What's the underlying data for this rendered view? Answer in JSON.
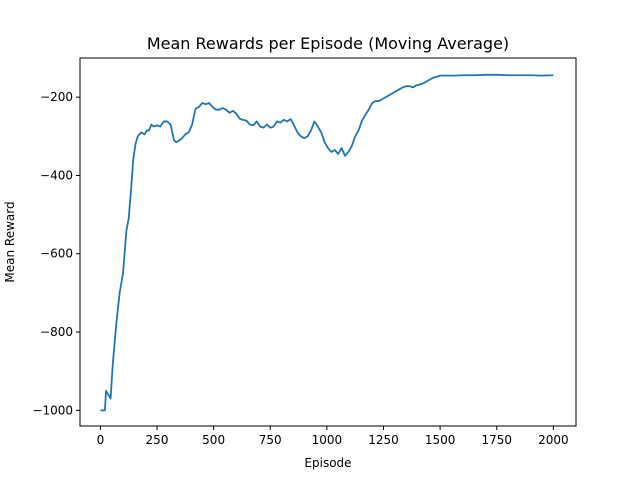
{
  "chart_data": {
    "type": "line",
    "title": "Mean Rewards per Episode (Moving Average)",
    "xlabel": "Episode",
    "ylabel": "Mean Reward",
    "xlim": [
      -90,
      2100
    ],
    "ylim": [
      -1040,
      -100
    ],
    "x_ticks": [
      0,
      250,
      500,
      750,
      1000,
      1250,
      1500,
      1750,
      2000
    ],
    "y_ticks": [
      -1000,
      -800,
      -600,
      -400,
      -200
    ],
    "x_tick_labels": [
      "0",
      "250",
      "500",
      "750",
      "1000",
      "1250",
      "1500",
      "1750",
      "2000"
    ],
    "y_tick_labels": [
      "−1000",
      "−800",
      "−600",
      "−400",
      "−200"
    ],
    "grid": false,
    "line_color": "#1f77b4",
    "series": [
      {
        "x": [
          0,
          20,
          25,
          35,
          45,
          55,
          70,
          85,
          100,
          115,
          125,
          135,
          145,
          155,
          165,
          180,
          195,
          205,
          215,
          225,
          235,
          250,
          265,
          280,
          295,
          310,
          325,
          335,
          345,
          360,
          375,
          390,
          405,
          420,
          435,
          450,
          465,
          480,
          495,
          510,
          525,
          540,
          555,
          570,
          585,
          600,
          615,
          630,
          645,
          660,
          675,
          690,
          705,
          720,
          735,
          750,
          765,
          780,
          795,
          810,
          825,
          840,
          855,
          870,
          885,
          900,
          915,
          930,
          945,
          960,
          975,
          990,
          1005,
          1020,
          1035,
          1050,
          1065,
          1080,
          1095,
          1110,
          1125,
          1140,
          1155,
          1170,
          1185,
          1200,
          1215,
          1230,
          1245,
          1260,
          1275,
          1290,
          1305,
          1320,
          1335,
          1350,
          1365,
          1380,
          1395,
          1410,
          1425,
          1440,
          1455,
          1470,
          1485,
          1500,
          1520,
          1540,
          1560,
          1600,
          1650,
          1700,
          1750,
          1800,
          1850,
          1900,
          1950,
          2000
        ],
        "y": [
          -1000,
          -1000,
          -950,
          -960,
          -970,
          -880,
          -780,
          -700,
          -650,
          -540,
          -510,
          -440,
          -360,
          -320,
          -300,
          -290,
          -295,
          -285,
          -285,
          -270,
          -275,
          -272,
          -275,
          -262,
          -262,
          -270,
          -310,
          -315,
          -312,
          -305,
          -295,
          -290,
          -270,
          -230,
          -225,
          -215,
          -218,
          -215,
          -225,
          -232,
          -232,
          -228,
          -232,
          -240,
          -235,
          -242,
          -255,
          -258,
          -260,
          -270,
          -272,
          -262,
          -275,
          -278,
          -270,
          -278,
          -275,
          -262,
          -265,
          -258,
          -262,
          -256,
          -272,
          -290,
          -300,
          -305,
          -300,
          -285,
          -262,
          -275,
          -290,
          -315,
          -330,
          -340,
          -335,
          -345,
          -330,
          -350,
          -340,
          -325,
          -300,
          -285,
          -260,
          -245,
          -232,
          -215,
          -210,
          -210,
          -205,
          -200,
          -195,
          -190,
          -185,
          -180,
          -175,
          -172,
          -172,
          -175,
          -170,
          -168,
          -165,
          -160,
          -155,
          -150,
          -148,
          -145,
          -145,
          -145,
          -145,
          -144,
          -144,
          -143,
          -143,
          -144,
          -144,
          -144,
          -145,
          -144
        ]
      }
    ]
  }
}
